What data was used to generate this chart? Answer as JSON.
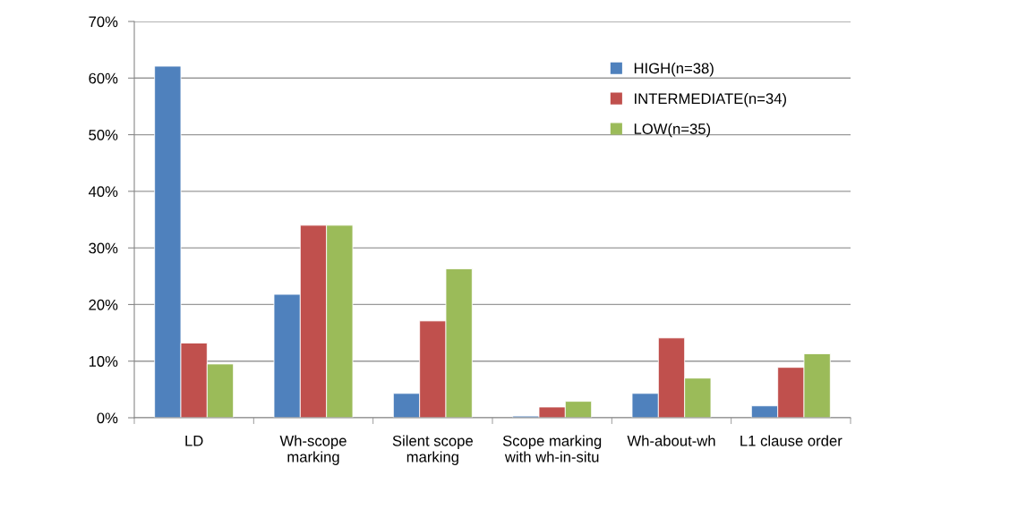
{
  "chart_data": {
    "type": "bar",
    "categories": [
      "LD",
      "Wh-scope\nmarking",
      "Silent scope\nmarking",
      "Scope marking\nwith wh-in-situ",
      "Wh-about-wh",
      "L1 clause order"
    ],
    "series": [
      {
        "name": "HIGH(n=38)",
        "color": "#4f81bd",
        "values": [
          62.1,
          21.8,
          4.3,
          0.3,
          4.3,
          2.1
        ]
      },
      {
        "name": "INTERMEDIATE(n=34)",
        "color": "#c0504d",
        "values": [
          13.2,
          34,
          17.1,
          1.9,
          14.1,
          8.9
        ]
      },
      {
        "name": "LOW(n=35)",
        "color": "#9bbb59",
        "values": [
          9.5,
          34,
          26.3,
          2.9,
          7.0,
          11.3
        ]
      }
    ],
    "ylim": [
      0,
      70
    ],
    "yticks": [
      {
        "value": 0,
        "label": "0%"
      },
      {
        "value": 10,
        "label": "10%"
      },
      {
        "value": 20,
        "label": "20%"
      },
      {
        "value": 30,
        "label": "30%"
      },
      {
        "value": 40,
        "label": "40%"
      },
      {
        "value": 50,
        "label": "50%"
      },
      {
        "value": 60,
        "label": "60%"
      },
      {
        "value": 70,
        "label": "70%"
      }
    ],
    "grid": "y",
    "legend": "top right"
  }
}
